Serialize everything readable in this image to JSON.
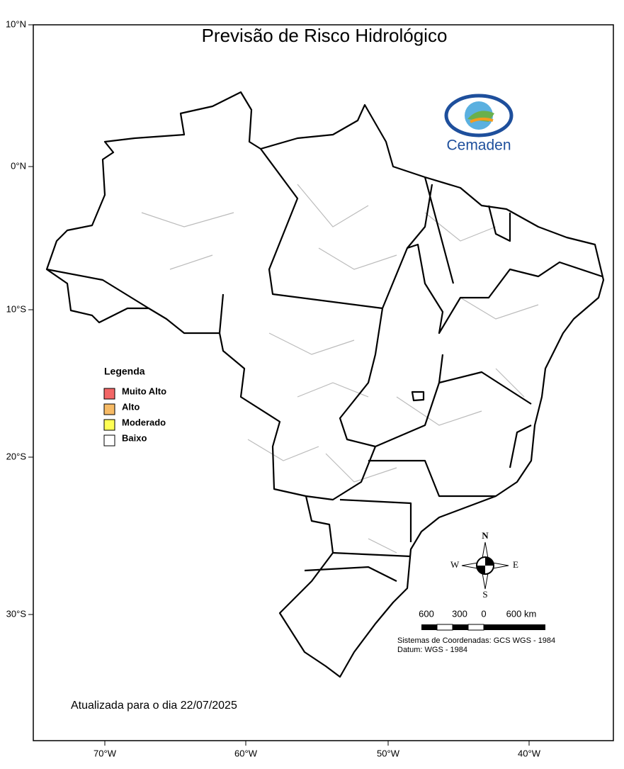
{
  "title": "Previsão de Risco Hidrológico",
  "logo": "Cemaden",
  "lat_ticks": [
    "10°N",
    "0°N",
    "10°S",
    "20°S",
    "30°S"
  ],
  "lon_ticks": [
    "70°W",
    "60°W",
    "50°W",
    "40°W"
  ],
  "legend": {
    "title": "Legenda",
    "items": [
      {
        "label": "Muito Alto",
        "color": "#f26666"
      },
      {
        "label": "Alto",
        "color": "#f7bb66"
      },
      {
        "label": "Moderado",
        "color": "#ffff55"
      },
      {
        "label": "Baixo",
        "color": "#ffffff"
      }
    ]
  },
  "compass": {
    "n": "N",
    "s": "S",
    "e": "E",
    "w": "W"
  },
  "scale": [
    "600",
    "300",
    "0",
    "600 km"
  ],
  "notes": [
    "Sistemas de Coordenadas: GCS WGS - 1984",
    "Datum: WGS - 1984"
  ],
  "updated": "Atualizada para o dia 22/07/2025"
}
